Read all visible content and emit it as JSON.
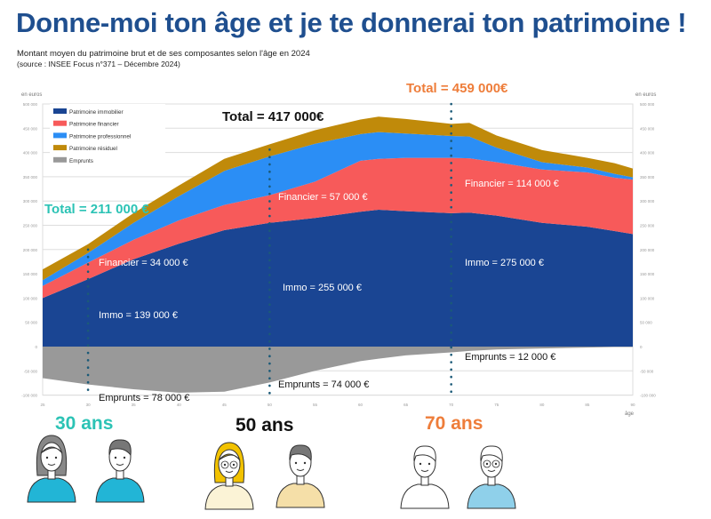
{
  "header": {
    "title": "Donne-moi ton âge et je te donnerai ton patrimoine !",
    "subtitle": "Montant moyen du patrimoine brut et de ses composantes selon l'âge en 2024",
    "source": "(source : INSEE  Focus n°371 – Décembre 2024)"
  },
  "chart_data": {
    "type": "area",
    "stacked": true,
    "ylabel": "en euros",
    "xlabel": "âge",
    "xlim": [
      25,
      90
    ],
    "ylim": [
      -100000,
      500000
    ],
    "x_ticks": [
      25,
      30,
      35,
      40,
      45,
      50,
      55,
      60,
      65,
      70,
      75,
      80,
      85,
      90
    ],
    "y_ticks": [
      {
        "v": 500000,
        "label": "500 000"
      },
      {
        "v": 450000,
        "label": "450 000"
      },
      {
        "v": 400000,
        "label": "400 000"
      },
      {
        "v": 350000,
        "label": "350 000"
      },
      {
        "v": 300000,
        "label": "300 000"
      },
      {
        "v": 250000,
        "label": "250 000"
      },
      {
        "v": 200000,
        "label": "200 000"
      },
      {
        "v": 150000,
        "label": "150 000"
      },
      {
        "v": 100000,
        "label": "100 000"
      },
      {
        "v": 50000,
        "label": "50 000"
      },
      {
        "v": 0,
        "label": "0"
      },
      {
        "v": -50000,
        "label": "-50 000"
      },
      {
        "v": -100000,
        "label": "-100 000"
      }
    ],
    "grid": true,
    "legend_position": "top-left",
    "x": [
      25,
      30,
      35,
      40,
      45,
      50,
      55,
      60,
      62,
      65,
      70,
      72,
      75,
      80,
      85,
      88,
      90
    ],
    "series": [
      {
        "name": "Patrimoine immobilier",
        "color": "#1a4593",
        "values": [
          100000,
          139000,
          180000,
          212000,
          240000,
          255000,
          265000,
          278000,
          282000,
          279000,
          275000,
          276000,
          270000,
          255000,
          247000,
          238000,
          232000
        ]
      },
      {
        "name": "Patrimoine financier",
        "color": "#f75a5a",
        "values": [
          25000,
          34000,
          40000,
          48000,
          52000,
          57000,
          75000,
          105000,
          105000,
          110000,
          114000,
          112000,
          110000,
          110000,
          112000,
          110000,
          112000
        ]
      },
      {
        "name": "Patrimoine professionnel",
        "color": "#2b8ef5",
        "values": [
          12000,
          20000,
          35000,
          50000,
          70000,
          80000,
          78000,
          55000,
          55000,
          50000,
          45000,
          45000,
          30000,
          15000,
          10000,
          8000,
          5000
        ]
      },
      {
        "name": "Patrimoine résiduel",
        "color": "#c08a0a",
        "values": [
          22000,
          18000,
          20000,
          22000,
          25000,
          25000,
          28000,
          30000,
          32000,
          30000,
          25000,
          28000,
          25000,
          25000,
          20000,
          22000,
          18000
        ]
      },
      {
        "name": "Emprunts",
        "color": "#999999",
        "values": [
          -65000,
          -78000,
          -88000,
          -95000,
          -93000,
          -74000,
          -50000,
          -30000,
          -25000,
          -18000,
          -12000,
          -9000,
          -6000,
          -4000,
          -2000,
          -1000,
          -1000
        ]
      }
    ],
    "annotations": {
      "total30": "Total = 211 000 €",
      "total50": "Total = 417 000€",
      "total70": "Total = 459 000€",
      "fin30": "Financier = 34 000 €",
      "immo30": "Immo = 139 000 €",
      "emp30": "Emprunts = 78 000 €",
      "fin50": "Financier = 57 000 €",
      "immo50": "Immo = 255 000 €",
      "emp50": "Emprunts = 74 000 €",
      "fin70": "Financier = 114 000 €",
      "immo70": "Immo = 275 000 €",
      "emp70": "Emprunts = 12 000 €"
    }
  },
  "colors": {
    "teal": "#2cc3b5",
    "orange": "#ee7d3a",
    "title_blue": "#1f4f8f",
    "marker": "#1b5a78"
  },
  "ages": {
    "a30": "30 ans",
    "a50": "50 ans",
    "a70": "70 ans"
  }
}
